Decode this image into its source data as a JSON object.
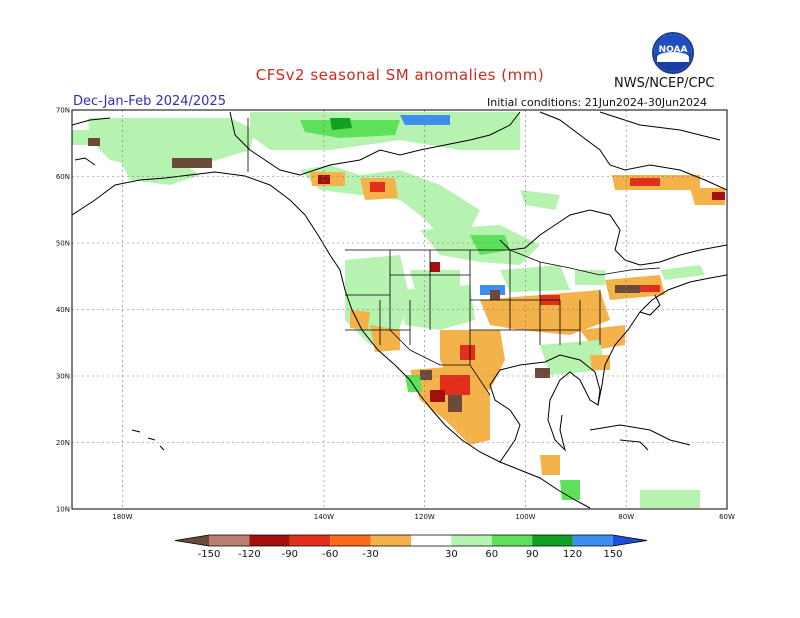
{
  "header": {
    "title": "CFSv2 seasonal SM anomalies (mm)",
    "agency": "NWS/NCEP/CPC",
    "season": "Dec-Jan-Feb 2024/2025",
    "initial_conditions": "Initial conditions: 21Jun2024-30Jun2024",
    "logo_text": "NOAA"
  },
  "map": {
    "lat_range": [
      10,
      70
    ],
    "lon_range": [
      -190,
      -60
    ],
    "lat_labels": [
      {
        "lat": 70,
        "text": "70N"
      },
      {
        "lat": 60,
        "text": "60N"
      },
      {
        "lat": 50,
        "text": "50N"
      },
      {
        "lat": 40,
        "text": "40N"
      },
      {
        "lat": 30,
        "text": "30N"
      },
      {
        "lat": 20,
        "text": "20N"
      },
      {
        "lat": 10,
        "text": "10N"
      }
    ],
    "lon_labels": [
      {
        "lon": -180,
        "text": "180W"
      },
      {
        "lon": -140,
        "text": "140W"
      },
      {
        "lon": -120,
        "text": "120W"
      },
      {
        "lon": -100,
        "text": "100W"
      },
      {
        "lon": -80,
        "text": "80W"
      },
      {
        "lon": -60,
        "text": "60W"
      }
    ]
  },
  "legend": {
    "units": "mm",
    "labels": [
      "-150",
      "-120",
      "-90",
      "-60",
      "-30",
      "30",
      "60",
      "90",
      "120",
      "150"
    ],
    "colors": [
      "#6b4a3a",
      "#b97f72",
      "#a50e0e",
      "#e0301c",
      "#ff6a1a",
      "#f4b24a",
      "#ffffff",
      "#b6f2b0",
      "#5fe05a",
      "#12a020",
      "#3e8ef0",
      "#1a4fd6"
    ]
  }
}
